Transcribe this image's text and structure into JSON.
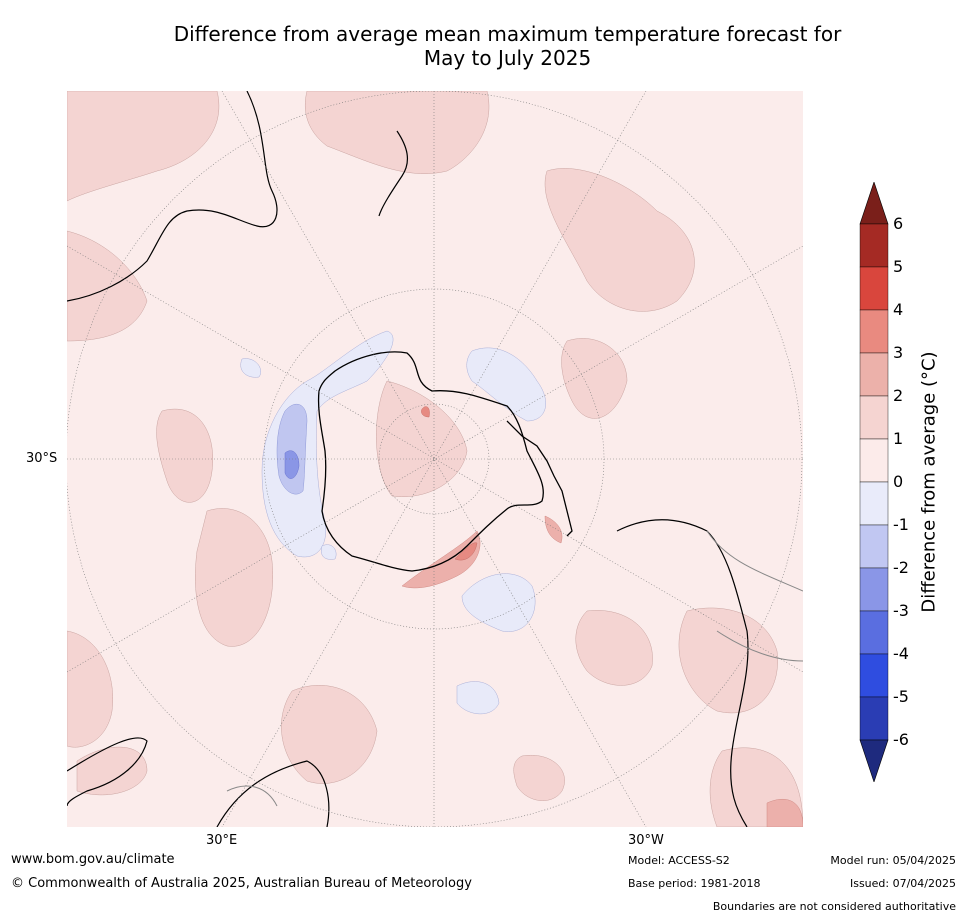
{
  "title_line1": "Difference from average mean maximum temperature forecast for",
  "title_line2": "May to July 2025",
  "map": {
    "projection": "south-polar-stereographic",
    "lat_label": "30°S",
    "lon_labels": [
      "30°E",
      "30°W"
    ],
    "colors": {
      "near_zero_warm": "#fbeceb",
      "warm_1_2": "#f4d4d2",
      "warm_2_3": "#ecb0ab",
      "warm_3_4": "#e68a82",
      "cool_0_1": "#e8eaf9",
      "cool_1_2": "#c0c6f0",
      "cool_2_3": "#8a96e6",
      "coastline": "#000000"
    }
  },
  "colorbar": {
    "title": "Difference from average (°C)",
    "ticks": [
      "6",
      "5",
      "4",
      "3",
      "2",
      "1",
      "0",
      "-1",
      "-2",
      "-3",
      "-4",
      "-5",
      "-6"
    ],
    "bands": [
      "#a52a24",
      "#d9463d",
      "#e98a80",
      "#ecb1aa",
      "#f5d4d1",
      "#fcebea",
      "#e9ebfa",
      "#c1c7f2",
      "#8a96e7",
      "#5a6ee0",
      "#2f4de0",
      "#2a3db4"
    ],
    "extend_top": "#7a1f1a",
    "extend_bottom": "#1e2a7e"
  },
  "footer": {
    "website": "www.bom.gov.au/climate",
    "copyright": "© Commonwealth of Australia 2025, Australian Bureau of Meteorology",
    "model": "Model: ACCESS-S2",
    "base_period": "Base period: 1981-2018",
    "model_run": "Model run: 05/04/2025",
    "issued": "Issued: 07/04/2025",
    "disclaimer": "Boundaries are not considered authoritative"
  }
}
